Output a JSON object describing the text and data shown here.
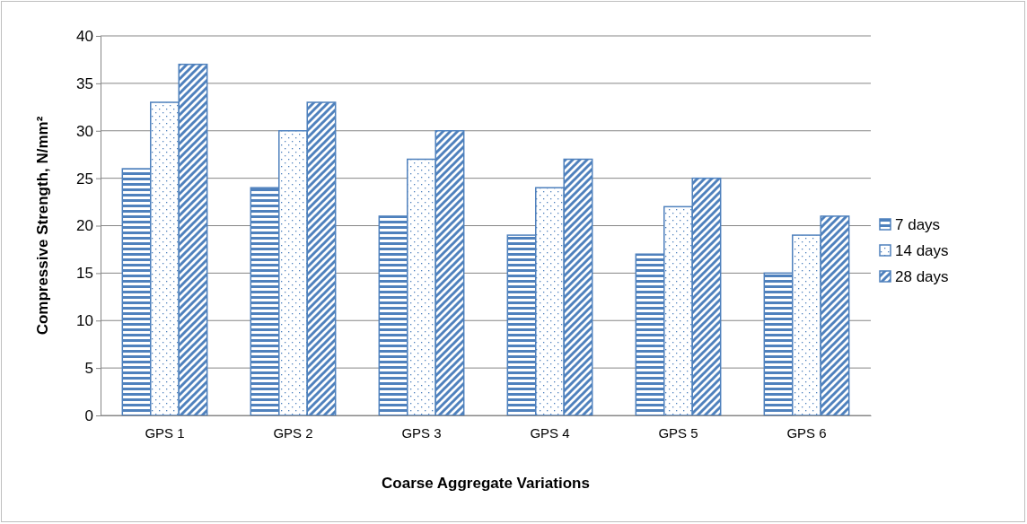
{
  "chart_data": {
    "type": "bar",
    "xlabel": "Coarse Aggregate Variations",
    "ylabel": "Compressive Strength, N/mm²",
    "categories": [
      "GPS 1",
      "GPS 2",
      "GPS 3",
      "GPS 4",
      "GPS 5",
      "GPS 6"
    ],
    "series": [
      {
        "name": "7 days",
        "color": "#4f81bd",
        "values": [
          26,
          24,
          21,
          19,
          17,
          15
        ]
      },
      {
        "name": "14 days",
        "color": "#4f81bd",
        "values": [
          33,
          30,
          27,
          24,
          22,
          19
        ]
      },
      {
        "name": "28 days",
        "color": "#4f81bd",
        "values": [
          37,
          33,
          30,
          27,
          25,
          21
        ]
      }
    ],
    "ylim": [
      0,
      40
    ],
    "yticks": [
      0,
      5,
      10,
      15,
      20,
      25,
      30,
      35,
      40
    ],
    "grid": "y",
    "legend": "right"
  }
}
